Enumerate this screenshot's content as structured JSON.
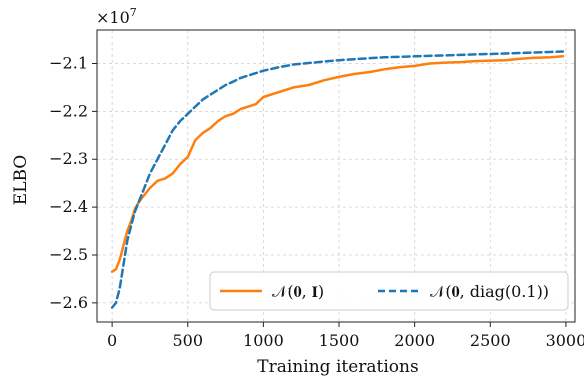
{
  "chart_data": {
    "type": "line",
    "xlabel": "Training iterations",
    "ylabel": "ELBO",
    "scale_label": "×10",
    "scale_exponent": "7",
    "xlim": [
      -100,
      3060
    ],
    "ylim": [
      -2.64,
      -2.03
    ],
    "xticks": [
      0,
      500,
      1000,
      1500,
      2000,
      2500,
      3000
    ],
    "xtick_labels": [
      "0",
      "500",
      "1000",
      "1500",
      "2000",
      "2500",
      "3000"
    ],
    "yticks": [
      -2.6,
      -2.5,
      -2.4,
      -2.3,
      -2.2,
      -2.1
    ],
    "ytick_labels": [
      "−2.6",
      "−2.5",
      "−2.4",
      "−2.3",
      "−2.2",
      "−2.1"
    ],
    "grid": true,
    "legend_position": "lower-right",
    "series": [
      {
        "name": "𝒩(𝟎, 𝐈)",
        "color": "#ff7f0e",
        "dash": "solid",
        "x": [
          0,
          25,
          50,
          75,
          100,
          125,
          150,
          175,
          200,
          250,
          300,
          350,
          400,
          450,
          500,
          550,
          600,
          650,
          700,
          750,
          800,
          850,
          900,
          950,
          1000,
          1100,
          1200,
          1300,
          1400,
          1500,
          1600,
          1700,
          1800,
          1900,
          2000,
          2100,
          2200,
          2300,
          2400,
          2500,
          2600,
          2700,
          2800,
          2900,
          2980
        ],
        "y": [
          -2.535,
          -2.53,
          -2.51,
          -2.48,
          -2.45,
          -2.43,
          -2.405,
          -2.39,
          -2.38,
          -2.36,
          -2.345,
          -2.34,
          -2.33,
          -2.31,
          -2.295,
          -2.26,
          -2.245,
          -2.235,
          -2.22,
          -2.21,
          -2.205,
          -2.195,
          -2.19,
          -2.185,
          -2.17,
          -2.16,
          -2.15,
          -2.145,
          -2.135,
          -2.128,
          -2.122,
          -2.118,
          -2.112,
          -2.108,
          -2.105,
          -2.1,
          -2.098,
          -2.097,
          -2.095,
          -2.094,
          -2.093,
          -2.09,
          -2.088,
          -2.087,
          -2.085
        ]
      },
      {
        "name": "𝒩(𝟎, diag(0.1))",
        "color": "#1f77b4",
        "dash": "dashed",
        "x": [
          0,
          25,
          50,
          75,
          100,
          125,
          150,
          200,
          250,
          300,
          350,
          400,
          450,
          500,
          550,
          600,
          650,
          700,
          750,
          800,
          850,
          900,
          1000,
          1100,
          1200,
          1300,
          1400,
          1500,
          1600,
          1700,
          1800,
          1900,
          2000,
          2200,
          2400,
          2600,
          2800,
          2980
        ],
        "y": [
          -2.61,
          -2.6,
          -2.57,
          -2.52,
          -2.47,
          -2.44,
          -2.41,
          -2.37,
          -2.33,
          -2.3,
          -2.27,
          -2.24,
          -2.22,
          -2.205,
          -2.19,
          -2.175,
          -2.165,
          -2.155,
          -2.145,
          -2.138,
          -2.13,
          -2.125,
          -2.115,
          -2.108,
          -2.102,
          -2.099,
          -2.096,
          -2.093,
          -2.091,
          -2.089,
          -2.087,
          -2.086,
          -2.085,
          -2.083,
          -2.081,
          -2.079,
          -2.077,
          -2.075
        ]
      }
    ]
  }
}
